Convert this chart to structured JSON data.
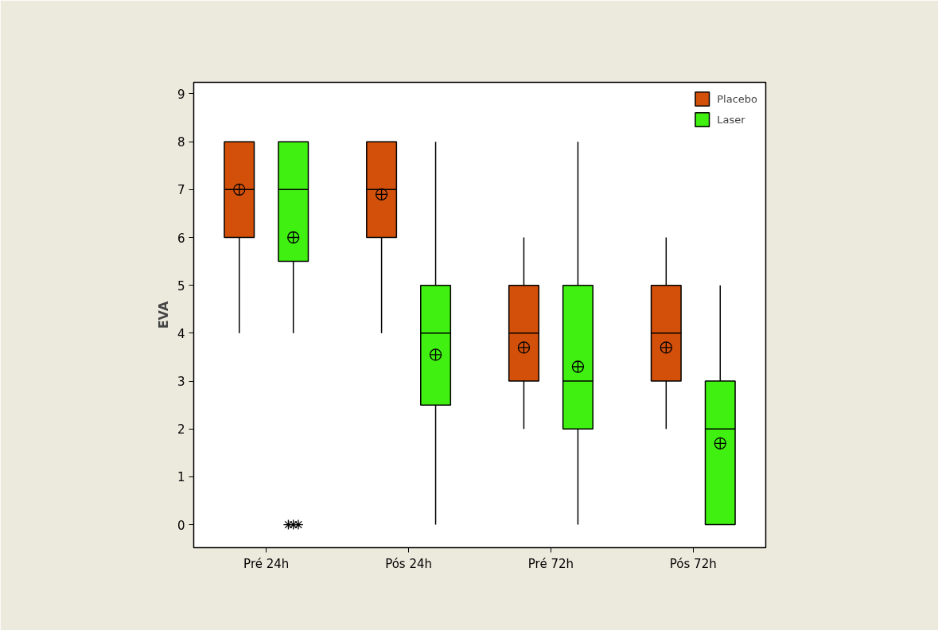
{
  "chart_data": {
    "type": "box",
    "ylabel": "EVA",
    "categories": [
      "Pré 24h",
      "Pós 24h",
      "Pré 72h",
      "Pós 72h"
    ],
    "ylim": [
      -0.48,
      9.24
    ],
    "yticks": [
      0,
      1,
      2,
      3,
      4,
      5,
      6,
      7,
      8,
      9
    ],
    "grid": false,
    "legend": "top right",
    "series": [
      {
        "name": "Placebo",
        "color": "#d2500a",
        "boxes": [
          {
            "low": 4,
            "q1": 6,
            "median": 7,
            "q3": 8,
            "high": 8,
            "mean": 7.0
          },
          {
            "low": 4,
            "q1": 6,
            "median": 7,
            "q3": 8,
            "high": 8,
            "mean": 6.9
          },
          {
            "low": 2,
            "q1": 3,
            "median": 4,
            "q3": 5,
            "high": 6,
            "mean": 3.7
          },
          {
            "low": 2,
            "q1": 3,
            "median": 4,
            "q3": 5,
            "high": 6,
            "mean": 3.7
          }
        ]
      },
      {
        "name": "Laser",
        "color": "#40f010",
        "boxes": [
          {
            "low": 4,
            "q1": 5.5,
            "median": 7,
            "q3": 8,
            "high": 8,
            "mean": 6.0,
            "outliers": [
              0,
              0,
              0
            ]
          },
          {
            "low": 0,
            "q1": 2.5,
            "median": 4,
            "q3": 5,
            "high": 8,
            "mean": 3.55
          },
          {
            "low": 0,
            "q1": 2,
            "median": 3,
            "q3": 5,
            "high": 8,
            "mean": 3.3
          },
          {
            "low": 0,
            "q1": 0,
            "median": 2,
            "q3": 3,
            "high": 5,
            "mean": 1.7
          }
        ]
      }
    ]
  }
}
